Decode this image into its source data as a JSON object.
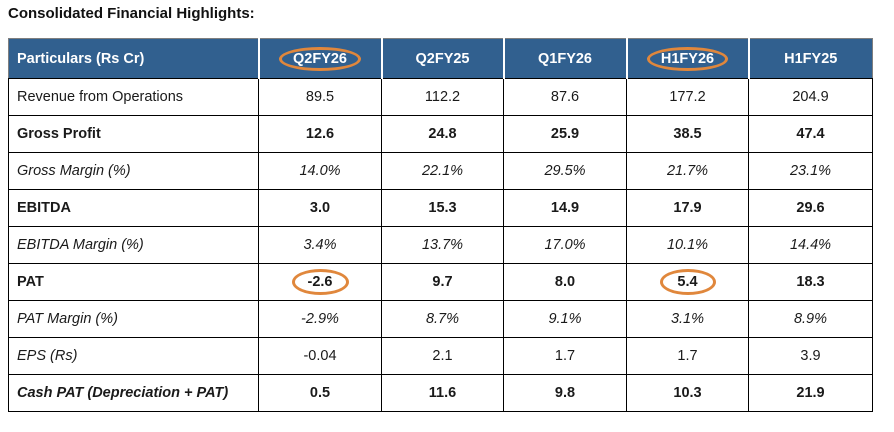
{
  "page": {
    "title": "Consolidated Financial Highlights:"
  },
  "colors": {
    "header_bg": "#31608F",
    "header_text": "#FFFFFF",
    "annotation_orange": "#E0873C",
    "grid_line": "#000000",
    "outer_border": "#7F7F7F"
  },
  "annotations": {
    "shape": "hand-drawn-orange-ellipse",
    "circled_items": [
      "Q2FY26 column header",
      "H1FY26 column header",
      "PAT Q2FY26 value -2.6",
      "PAT H1FY26 value 5.4"
    ]
  },
  "table": {
    "columns": [
      {
        "label": "Particulars (Rs Cr)",
        "circled": false
      },
      {
        "label": "Q2FY26",
        "circled": true
      },
      {
        "label": "Q2FY25",
        "circled": false
      },
      {
        "label": "Q1FY26",
        "circled": false
      },
      {
        "label": "H1FY26",
        "circled": true
      },
      {
        "label": "H1FY25",
        "circled": false
      }
    ],
    "rows": [
      {
        "label": "Revenue from Operations",
        "label_style": "regular",
        "value_style": "regular",
        "values": [
          "89.5",
          "112.2",
          "87.6",
          "177.2",
          "204.9"
        ],
        "circled_values": []
      },
      {
        "label": "Gross Profit",
        "label_style": "bold",
        "value_style": "bold",
        "values": [
          "12.6",
          "24.8",
          "25.9",
          "38.5",
          "47.4"
        ],
        "circled_values": []
      },
      {
        "label": "Gross Margin (%)",
        "label_style": "italic",
        "value_style": "italic",
        "values": [
          "14.0%",
          "22.1%",
          "29.5%",
          "21.7%",
          "23.1%"
        ],
        "circled_values": []
      },
      {
        "label": "EBITDA",
        "label_style": "bold",
        "value_style": "bold",
        "values": [
          "3.0",
          "15.3",
          "14.9",
          "17.9",
          "29.6"
        ],
        "circled_values": []
      },
      {
        "label": "EBITDA Margin (%)",
        "label_style": "italic",
        "value_style": "italic",
        "values": [
          "3.4%",
          "13.7%",
          "17.0%",
          "10.1%",
          "14.4%"
        ],
        "circled_values": []
      },
      {
        "label": "PAT",
        "label_style": "bold",
        "value_style": "bold",
        "values": [
          "-2.6",
          "9.7",
          "8.0",
          "5.4",
          "18.3"
        ],
        "circled_values": [
          0,
          3
        ]
      },
      {
        "label": "PAT Margin (%)",
        "label_style": "italic",
        "value_style": "italic",
        "values": [
          "-2.9%",
          "8.7%",
          "9.1%",
          "3.1%",
          "8.9%"
        ],
        "circled_values": []
      },
      {
        "label": "EPS (Rs)",
        "label_style": "italic",
        "value_style": "regular",
        "values": [
          "-0.04",
          "2.1",
          "1.7",
          "1.7",
          "3.9"
        ],
        "circled_values": []
      },
      {
        "label": "Cash PAT (Depreciation + PAT)",
        "label_style": "bold-italic",
        "value_style": "bold",
        "values": [
          "0.5",
          "11.6",
          "9.8",
          "10.3",
          "21.9"
        ],
        "circled_values": []
      }
    ]
  }
}
